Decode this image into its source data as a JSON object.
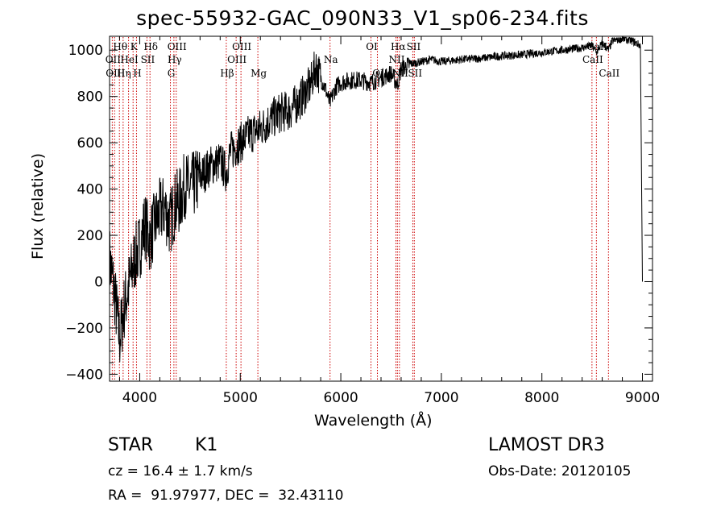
{
  "chart_data": {
    "type": "line",
    "title": "spec-55932-GAC_090N33_V1_sp06-234.fits",
    "xlabel": "Wavelength (Å)",
    "ylabel": "Flux (relative)",
    "xlim": [
      3700,
      9100
    ],
    "ylim": [
      -430,
      1060
    ],
    "xticks": [
      4000,
      5000,
      6000,
      7000,
      8000,
      9000
    ],
    "yticks": [
      -400,
      -200,
      0,
      200,
      400,
      600,
      800,
      1000
    ],
    "series": [
      {
        "name": "flux",
        "x": [
          3700,
          3750,
          3800,
          3850,
          3900,
          3950,
          4000,
          4050,
          4100,
          4150,
          4200,
          4250,
          4300,
          4350,
          4400,
          4450,
          4500,
          4600,
          4700,
          4800,
          4861,
          4900,
          5000,
          5100,
          5200,
          5300,
          5400,
          5500,
          5600,
          5700,
          5750,
          5800,
          5850,
          5890,
          5950,
          6000,
          6100,
          6200,
          6300,
          6400,
          6500,
          6563,
          6600,
          6700,
          6800,
          6900,
          7000,
          7200,
          7400,
          7600,
          7800,
          8000,
          8200,
          8400,
          8500,
          8542,
          8600,
          8662,
          8700,
          8800,
          8900,
          8980,
          9000
        ],
        "y": [
          100,
          -50,
          -250,
          -100,
          0,
          100,
          150,
          250,
          180,
          250,
          300,
          320,
          250,
          330,
          350,
          420,
          400,
          450,
          500,
          520,
          470,
          560,
          600,
          640,
          660,
          700,
          730,
          740,
          790,
          850,
          930,
          880,
          830,
          770,
          840,
          860,
          870,
          870,
          860,
          880,
          900,
          850,
          920,
          940,
          950,
          960,
          950,
          960,
          965,
          975,
          980,
          990,
          1000,
          1010,
          1020,
          990,
          1030,
          1000,
          1040,
          1050,
          1040,
          1020,
          0
        ]
      }
    ],
    "line_labels": [
      {
        "label": "Hθ",
        "x": 3798,
        "row": 1
      },
      {
        "label": "OII",
        "x": 3727,
        "row": 2
      },
      {
        "label": "OIII",
        "x": 3750,
        "row": 3
      },
      {
        "label": "K",
        "x": 3934,
        "row": 1
      },
      {
        "label": "HeI",
        "x": 3889,
        "row": 2
      },
      {
        "label": "Hη",
        "x": 3835,
        "row": 3
      },
      {
        "label": "H",
        "x": 3968,
        "row": 3
      },
      {
        "label": "Hδ",
        "x": 4102,
        "row": 1
      },
      {
        "label": "SII",
        "x": 4072,
        "row": 2
      },
      {
        "label": "OIII",
        "x": 4363,
        "row": 1
      },
      {
        "label": "Hγ",
        "x": 4340,
        "row": 2
      },
      {
        "label": "G",
        "x": 4305,
        "row": 3
      },
      {
        "label": "Hβ",
        "x": 4861,
        "row": 3
      },
      {
        "label": "OIII",
        "x": 5007,
        "row": 1
      },
      {
        "label": "OIII",
        "x": 4959,
        "row": 2
      },
      {
        "label": "Mg",
        "x": 5175,
        "row": 3
      },
      {
        "label": "Na",
        "x": 5893,
        "row": 2
      },
      {
        "label": "OI",
        "x": 6300,
        "row": 1
      },
      {
        "label": "OI",
        "x": 6364,
        "row": 3
      },
      {
        "label": "Hα",
        "x": 6563,
        "row": 1
      },
      {
        "label": "NII",
        "x": 6548,
        "row": 2
      },
      {
        "label": "NII",
        "x": 6583,
        "row": 3
      },
      {
        "label": "SII",
        "x": 6716,
        "row": 1
      },
      {
        "label": "SII",
        "x": 6731,
        "row": 3
      },
      {
        "label": "CaII",
        "x": 8542,
        "row": 1
      },
      {
        "label": "CaII",
        "x": 8498,
        "row": 2
      },
      {
        "label": "CaII",
        "x": 8662,
        "row": 3
      }
    ],
    "line_markers_x": [
      3727,
      3750,
      3798,
      3835,
      3889,
      3934,
      3968,
      4072,
      4102,
      4305,
      4340,
      4363,
      4861,
      4959,
      5007,
      5175,
      5893,
      6300,
      6364,
      6548,
      6563,
      6583,
      6716,
      6731,
      8498,
      8542,
      8662
    ]
  },
  "info": {
    "class": "STAR",
    "subclass": "K1",
    "survey": "LAMOST DR3",
    "cz": "cz = 16.4 ± 1.7 km/s",
    "obs_date": "Obs-Date: 20120105",
    "coords": "RA =  91.97977, DEC =  32.43110"
  },
  "colors": {
    "axes": "#000000",
    "spectrum": "#000000",
    "line_marker": "#cc0000"
  }
}
